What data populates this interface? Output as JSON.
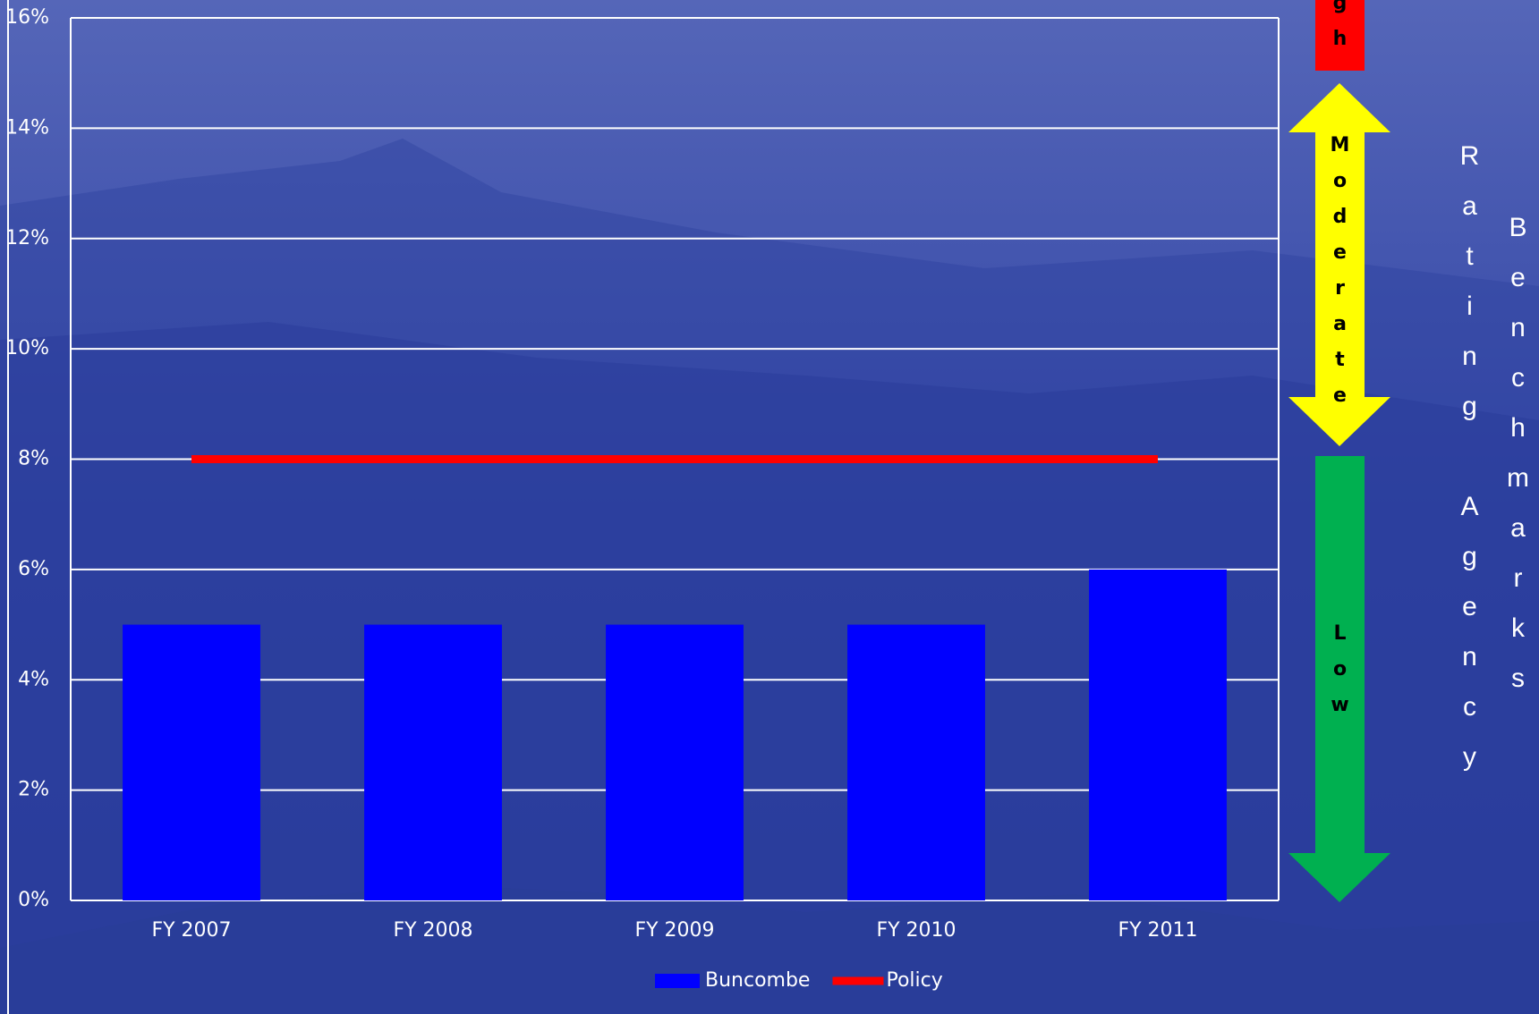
{
  "chart_data": {
    "type": "bar",
    "categories": [
      "FY 2007",
      "FY 2008",
      "FY 2009",
      "FY 2010",
      "FY 2011"
    ],
    "series": [
      {
        "name": "Buncombe",
        "type": "bar",
        "color": "#0000ff",
        "values": [
          5,
          5,
          5,
          5,
          6
        ]
      },
      {
        "name": "Policy",
        "type": "line",
        "color": "#ff0000",
        "values": [
          8,
          8,
          8,
          8,
          8
        ]
      }
    ],
    "ylim": [
      0,
      16
    ],
    "yticks": [
      {
        "value": 0,
        "label": "0%"
      },
      {
        "value": 2,
        "label": "2%"
      },
      {
        "value": 4,
        "label": "4%"
      },
      {
        "value": 6,
        "label": "6%"
      },
      {
        "value": 8,
        "label": "8%"
      },
      {
        "value": 10,
        "label": "10%"
      },
      {
        "value": 12,
        "label": "12%"
      },
      {
        "value": 14,
        "label": "14%"
      },
      {
        "value": 16,
        "label": "16%"
      }
    ],
    "grid": true,
    "legend": "bottom",
    "annotations": {
      "high": "High",
      "moderate": "Moderate",
      "low": "Low",
      "side_label": [
        "Rating Agency",
        "Benchmarks"
      ]
    }
  }
}
